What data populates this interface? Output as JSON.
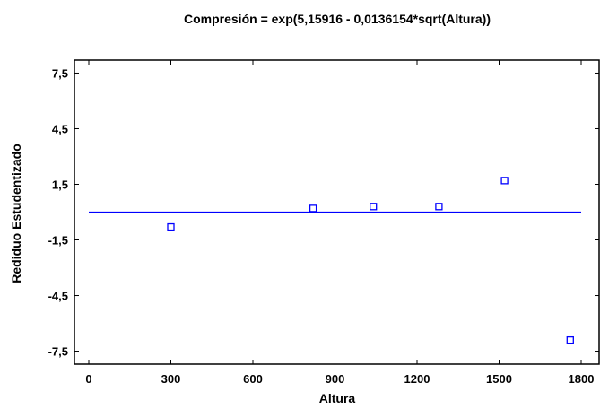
{
  "chart_data": {
    "type": "scatter",
    "title": "Compresión = exp(5,15916 - 0,0136154*sqrt(Altura))",
    "xlabel": "Altura",
    "ylabel": "Rediduo Estudentizado",
    "xlim": [
      0,
      1800
    ],
    "ylim": [
      -8.2,
      8.2
    ],
    "x_ticks": [
      0,
      300,
      600,
      900,
      1200,
      1500,
      1800
    ],
    "x_tick_labels": [
      "0",
      "300",
      "600",
      "900",
      "1200",
      "1500",
      "1800"
    ],
    "y_ticks": [
      7.5,
      4.5,
      1.5,
      -1.5,
      -4.5,
      -7.5
    ],
    "y_tick_labels": [
      "7,5",
      "4,5",
      "1,5",
      "-1,5",
      "-4,5",
      "-7,5"
    ],
    "reference_line_y": 0,
    "grid": false,
    "series": [
      {
        "x": [
          300,
          820,
          1040,
          1280,
          1520,
          1760
        ],
        "y": [
          -0.8,
          0.2,
          0.3,
          0.3,
          1.7,
          -6.9
        ]
      }
    ],
    "colors": {
      "points": "#0000ff",
      "reference_line": "#0000ff",
      "axes": "#000000"
    }
  }
}
